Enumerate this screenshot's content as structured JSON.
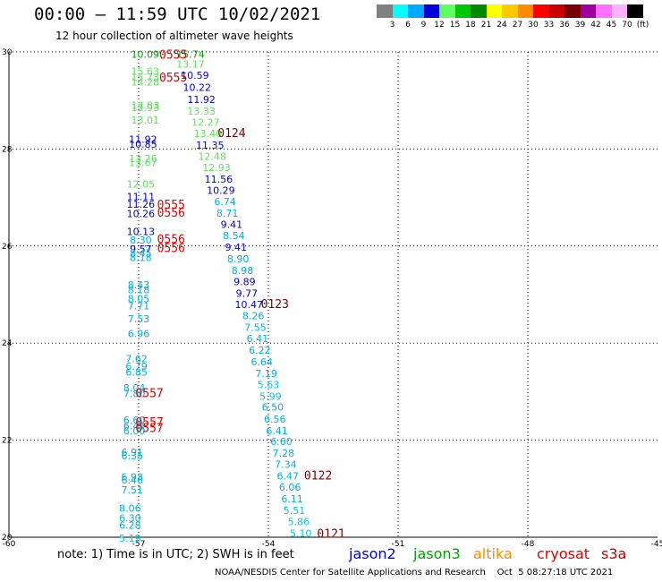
{
  "header": {
    "title": "00:00 – 11:59 UTC 10/02/2021",
    "subtitle": "12 hour collection of altimeter wave heights"
  },
  "legend": {
    "colors": [
      "#808080",
      "#00ffff",
      "#00a8ff",
      "#0000d8",
      "#60ff60",
      "#00c800",
      "#008800",
      "#ffff00",
      "#ffc800",
      "#ff8c00",
      "#ff0000",
      "#c80000",
      "#780000",
      "#a000a0",
      "#ff70ff",
      "#ffb0ff",
      "#000000"
    ],
    "labels": [
      "3",
      "6",
      "9",
      "12",
      "15",
      "18",
      "21",
      "24",
      "27",
      "30",
      "33",
      "36",
      "39",
      "42",
      "45",
      "70",
      "(ft)"
    ]
  },
  "footer": {
    "note": "note: 1) Time is in UTC; 2) SWH is in feet",
    "missions": [
      {
        "name": "jason2",
        "color": "#0000d8"
      },
      {
        "name": "jason3",
        "color": "#00a000"
      },
      {
        "name": "altika",
        "color": "#ff8c00"
      },
      {
        "name": "cryosat",
        "color": "#e00000"
      },
      {
        "name": "s3a",
        "color": "#c80000"
      }
    ],
    "credit": "NOAA/NESDIS Center for Satellite Applications and Research    Oct  5 08:27:18 UTC 2021"
  },
  "chart_data": {
    "type": "scatter",
    "title": "00:00 – 11:59 UTC 10/02/2021",
    "subtitle": "12 hour collection of altimeter wave heights",
    "xlim": [
      -60,
      -45
    ],
    "ylim": [
      20,
      30
    ],
    "x_ticks": [
      -60,
      -57,
      -54,
      -51,
      -48,
      -45
    ],
    "y_ticks": [
      20,
      22,
      24,
      26,
      28,
      30
    ],
    "grid": true,
    "series": [
      {
        "name": "track-west",
        "points": [
          {
            "x": -56.85,
            "y": 29.95,
            "v": "10.09",
            "c": "#00a000"
          },
          {
            "x": -56.85,
            "y": 29.6,
            "v": "15.63",
            "c": "#60e060"
          },
          {
            "x": -56.85,
            "y": 29.48,
            "v": "15.73",
            "c": "#60e060"
          },
          {
            "x": -56.85,
            "y": 29.38,
            "v": "14.28",
            "c": "#60e060"
          },
          {
            "x": -56.85,
            "y": 28.9,
            "v": "13.83",
            "c": "#60e060"
          },
          {
            "x": -56.85,
            "y": 28.86,
            "v": "13.93",
            "c": "#60e060"
          },
          {
            "x": -56.85,
            "y": 28.6,
            "v": "13.01",
            "c": "#60e060"
          },
          {
            "x": -56.9,
            "y": 28.2,
            "v": "11.92",
            "c": "#0000d8"
          },
          {
            "x": -56.9,
            "y": 28.1,
            "v": "10.85",
            "c": "#0000d8"
          },
          {
            "x": -56.9,
            "y": 27.8,
            "v": "13.26",
            "c": "#60e060"
          },
          {
            "x": -56.9,
            "y": 27.72,
            "v": "13.67",
            "c": "#60e060"
          },
          {
            "x": -56.95,
            "y": 27.28,
            "v": "12.05",
            "c": "#60e060"
          },
          {
            "x": -56.95,
            "y": 27.02,
            "v": "11.11",
            "c": "#0000d8"
          },
          {
            "x": -56.95,
            "y": 26.86,
            "v": "11.26",
            "c": "#0000d8"
          },
          {
            "x": -56.95,
            "y": 26.67,
            "v": "10.26",
            "c": "#0000d8"
          },
          {
            "x": -56.95,
            "y": 26.3,
            "v": "10.13",
            "c": "#0000d8"
          },
          {
            "x": -56.95,
            "y": 26.13,
            "v": "8.30",
            "c": "#00b0e0"
          },
          {
            "x": -56.95,
            "y": 25.94,
            "v": "9.57",
            "c": "#0000d8"
          },
          {
            "x": -56.95,
            "y": 25.86,
            "v": "8.45",
            "c": "#00b0e0"
          },
          {
            "x": -56.95,
            "y": 25.77,
            "v": "8.18",
            "c": "#00b0e0"
          },
          {
            "x": -57.0,
            "y": 25.2,
            "v": "8.43",
            "c": "#00b0e0"
          },
          {
            "x": -57.0,
            "y": 25.1,
            "v": "8.18",
            "c": "#00b0e0"
          },
          {
            "x": -57.0,
            "y": 24.92,
            "v": "8.05",
            "c": "#00b0e0"
          },
          {
            "x": -57.0,
            "y": 24.77,
            "v": "7.71",
            "c": "#00b0e0"
          },
          {
            "x": -57.0,
            "y": 24.5,
            "v": "7.53",
            "c": "#00b0e0"
          },
          {
            "x": -57.0,
            "y": 24.2,
            "v": "6.96",
            "c": "#00b0e0"
          },
          {
            "x": -57.05,
            "y": 23.68,
            "v": "7.62",
            "c": "#00b0e0"
          },
          {
            "x": -57.05,
            "y": 23.52,
            "v": "6.79",
            "c": "#00b0e0"
          },
          {
            "x": -57.05,
            "y": 23.4,
            "v": "6.85",
            "c": "#00b0e0"
          },
          {
            "x": -57.1,
            "y": 23.08,
            "v": "8.04",
            "c": "#00b0e0"
          },
          {
            "x": -57.1,
            "y": 22.96,
            "v": "7.80",
            "c": "#00b0e0"
          },
          {
            "x": -57.1,
            "y": 22.42,
            "v": "6.60",
            "c": "#00b0e0"
          },
          {
            "x": -57.1,
            "y": 22.3,
            "v": "6.41",
            "c": "#00b0e0"
          },
          {
            "x": -57.1,
            "y": 22.2,
            "v": "6.00",
            "c": "#00b0e0"
          },
          {
            "x": -57.15,
            "y": 21.75,
            "v": "6.91",
            "c": "#00b0e0"
          },
          {
            "x": -57.15,
            "y": 21.68,
            "v": "6.35",
            "c": "#00b0e0"
          },
          {
            "x": -57.15,
            "y": 21.25,
            "v": "6.93",
            "c": "#00b0e0"
          },
          {
            "x": -57.15,
            "y": 21.18,
            "v": "6.46",
            "c": "#00b0e0"
          },
          {
            "x": -57.15,
            "y": 20.98,
            "v": "7.51",
            "c": "#00b0e0"
          },
          {
            "x": -57.2,
            "y": 20.6,
            "v": "8.06",
            "c": "#00b0e0"
          },
          {
            "x": -57.2,
            "y": 20.4,
            "v": "6.30",
            "c": "#00b0e0"
          },
          {
            "x": -57.2,
            "y": 20.25,
            "v": "6.28",
            "c": "#00b0e0"
          },
          {
            "x": -57.2,
            "y": 19.98,
            "v": "5.19",
            "c": "#00c8e8"
          }
        ]
      },
      {
        "name": "track-east",
        "points": [
          {
            "x": -55.8,
            "y": 29.95,
            "v": "15.74",
            "c": "#00a000"
          },
          {
            "x": -55.8,
            "y": 29.75,
            "v": "13.17",
            "c": "#60e060"
          },
          {
            "x": -55.7,
            "y": 29.52,
            "v": "10.59",
            "c": "#0000d8"
          },
          {
            "x": -55.65,
            "y": 29.27,
            "v": "10.22",
            "c": "#0000d8"
          },
          {
            "x": -55.55,
            "y": 29.02,
            "v": "11.92",
            "c": "#0000d8"
          },
          {
            "x": -55.55,
            "y": 28.78,
            "v": "13.33",
            "c": "#60e060"
          },
          {
            "x": -55.45,
            "y": 28.55,
            "v": "12.27",
            "c": "#60e060"
          },
          {
            "x": -55.4,
            "y": 28.32,
            "v": "13.40",
            "c": "#60e060"
          },
          {
            "x": -55.35,
            "y": 28.08,
            "v": "11.35",
            "c": "#0000d8"
          },
          {
            "x": -55.3,
            "y": 27.85,
            "v": "12.48",
            "c": "#60e060"
          },
          {
            "x": -55.2,
            "y": 27.62,
            "v": "12.93",
            "c": "#60e060"
          },
          {
            "x": -55.15,
            "y": 27.38,
            "v": "11.56",
            "c": "#0000d8"
          },
          {
            "x": -55.1,
            "y": 27.15,
            "v": "10.29",
            "c": "#0000d8"
          },
          {
            "x": -55.0,
            "y": 26.92,
            "v": "6.74",
            "c": "#00b0e0"
          },
          {
            "x": -54.95,
            "y": 26.68,
            "v": "8.71",
            "c": "#00b0e0"
          },
          {
            "x": -54.85,
            "y": 26.45,
            "v": "9.41",
            "c": "#0000d8"
          },
          {
            "x": -54.8,
            "y": 26.22,
            "v": "8.54",
            "c": "#00b0e0"
          },
          {
            "x": -54.75,
            "y": 25.98,
            "v": "9.41",
            "c": "#0000d8"
          },
          {
            "x": -54.7,
            "y": 25.74,
            "v": "8.90",
            "c": "#00b0e0"
          },
          {
            "x": -54.6,
            "y": 25.5,
            "v": "8.98",
            "c": "#00b0e0"
          },
          {
            "x": -54.55,
            "y": 25.27,
            "v": "9.89",
            "c": "#0000d8"
          },
          {
            "x": -54.5,
            "y": 25.03,
            "v": "9.77",
            "c": "#0000d8"
          },
          {
            "x": -54.45,
            "y": 24.8,
            "v": "10.47",
            "c": "#0000d8"
          },
          {
            "x": -54.35,
            "y": 24.57,
            "v": "8.26",
            "c": "#00b0e0"
          },
          {
            "x": -54.3,
            "y": 24.33,
            "v": "7.55",
            "c": "#00b0e0"
          },
          {
            "x": -54.25,
            "y": 24.1,
            "v": "6.41",
            "c": "#00b0e0"
          },
          {
            "x": -54.2,
            "y": 23.86,
            "v": "6.22",
            "c": "#00b0e0"
          },
          {
            "x": -54.15,
            "y": 23.62,
            "v": "6.64",
            "c": "#00b0e0"
          },
          {
            "x": -54.05,
            "y": 23.38,
            "v": "7.19",
            "c": "#00b0e0"
          },
          {
            "x": -54.0,
            "y": 23.15,
            "v": "5.63",
            "c": "#00c8e8"
          },
          {
            "x": -53.95,
            "y": 22.91,
            "v": "5.99",
            "c": "#00c8e8"
          },
          {
            "x": -53.9,
            "y": 22.68,
            "v": "6.50",
            "c": "#00b0e0"
          },
          {
            "x": -53.85,
            "y": 22.44,
            "v": "6.56",
            "c": "#00b0e0"
          },
          {
            "x": -53.8,
            "y": 22.2,
            "v": "6.41",
            "c": "#00b0e0"
          },
          {
            "x": -53.7,
            "y": 21.97,
            "v": "6.60",
            "c": "#00b0e0"
          },
          {
            "x": -53.65,
            "y": 21.73,
            "v": "7.28",
            "c": "#00b0e0"
          },
          {
            "x": -53.6,
            "y": 21.5,
            "v": "7.34",
            "c": "#00b0e0"
          },
          {
            "x": -53.55,
            "y": 21.26,
            "v": "6.47",
            "c": "#00b0e0"
          },
          {
            "x": -53.5,
            "y": 21.03,
            "v": "6.06",
            "c": "#00b0e0"
          },
          {
            "x": -53.45,
            "y": 20.79,
            "v": "6.11",
            "c": "#00b0e0"
          },
          {
            "x": -53.4,
            "y": 20.55,
            "v": "5.51",
            "c": "#00c8e8"
          },
          {
            "x": -53.3,
            "y": 20.32,
            "v": "5.86",
            "c": "#00c8e8"
          },
          {
            "x": -53.25,
            "y": 20.08,
            "v": "5.10",
            "c": "#00c8e8"
          }
        ]
      }
    ],
    "time_labels": [
      {
        "x": -56.2,
        "y": 29.95,
        "text": "0555",
        "c": "#e00000"
      },
      {
        "x": -56.2,
        "y": 29.48,
        "text": "0555",
        "c": "#e00000"
      },
      {
        "x": -56.25,
        "y": 26.86,
        "text": "0555",
        "c": "#e00000"
      },
      {
        "x": -56.25,
        "y": 26.7,
        "text": "0556",
        "c": "#e00000"
      },
      {
        "x": -56.25,
        "y": 26.15,
        "text": "0556",
        "c": "#e00000"
      },
      {
        "x": -56.25,
        "y": 25.97,
        "text": "0556",
        "c": "#e00000"
      },
      {
        "x": -56.75,
        "y": 22.98,
        "text": "0557",
        "c": "#e00000"
      },
      {
        "x": -56.75,
        "y": 22.38,
        "text": "0557",
        "c": "#e00000"
      },
      {
        "x": -56.75,
        "y": 22.26,
        "text": "0557",
        "c": "#e00000"
      },
      {
        "x": -54.85,
        "y": 28.34,
        "text": "0124",
        "c": "#780000"
      },
      {
        "x": -53.85,
        "y": 24.82,
        "text": "0123",
        "c": "#780000"
      },
      {
        "x": -52.85,
        "y": 21.28,
        "text": "0122",
        "c": "#780000"
      },
      {
        "x": -52.55,
        "y": 20.08,
        "text": "0121",
        "c": "#780000"
      }
    ]
  }
}
